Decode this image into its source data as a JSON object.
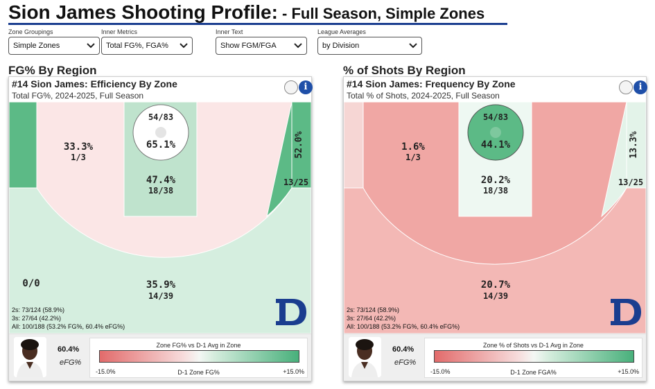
{
  "header": {
    "title_main": "Sion James Shooting Profile:",
    "title_sub": " - Full Season, Simple Zones"
  },
  "controls": [
    {
      "label": "Zone Groupings",
      "value": "Simple Zones"
    },
    {
      "label": "Inner Metrics",
      "value": "Total FG%, FGA%"
    },
    {
      "label": "Inner Text",
      "value": "Show FGM/FGA"
    },
    {
      "label": "League Averages",
      "value": "by Division"
    }
  ],
  "colors": {
    "dark_green": "#5cba86",
    "light_green": "#d5eedf",
    "pale_green": "#e6f3ea",
    "mid_green": "#bfe3cd",
    "pale_red": "#fbe6e6",
    "light_red": "#f0a7a4",
    "mid_red": "#f3b8b5",
    "accent_blue": "#1f4fa8",
    "duke_blue": "#1a3d8f"
  },
  "panels": [
    {
      "section_title": "FG% By Region",
      "title": "#14 Sion James: Efficiency By Zone",
      "subtitle": "Total FG%, 2024-2025, Full Season",
      "stats": [
        "2s: 73/124 (58.9%)",
        "3s: 27/64 (42.2%)",
        "All: 100/188 (53.2% FG%, 60.4% eFG%)"
      ],
      "footer": {
        "value": "60.4%",
        "metric": "eFG%",
        "legend_title": "Zone FG% vs D-1 Avg in Zone",
        "legend_min": "-15.0%",
        "legend_mid": "D-1 Zone FG%",
        "legend_max": "+15.0%"
      }
    },
    {
      "section_title": "% of Shots By Region",
      "title": "#14 Sion James: Frequency By Zone",
      "subtitle": "Total % of Shots, 2024-2025, Full Season",
      "stats": [
        "2s: 73/124 (58.9%)",
        "3s: 27/64 (42.2%)",
        "All: 100/188 (53.2% FG%, 60.4% eFG%)"
      ],
      "footer": {
        "value": "60.4%",
        "metric": "eFG%",
        "legend_title": "Zone % of Shots vs D-1 Avg in Zone",
        "legend_min": "-15.0%",
        "legend_mid": "D-1 Zone FGA%",
        "legend_max": "+15.0%"
      }
    }
  ],
  "chart_data": [
    {
      "type": "heatmap",
      "title": "#14 Sion James: Efficiency By Zone",
      "subtitle": "Total FG%, 2024-2025, Full Season",
      "metric": "Total FG%",
      "zones": [
        {
          "zone": "rim",
          "value": "65.1%",
          "made_attempts": "54/83",
          "color": "#ffffff"
        },
        {
          "zone": "paint",
          "value": "47.4%",
          "made_attempts": "18/38",
          "color": "#bfe3cd"
        },
        {
          "zone": "left corner 3",
          "value": "",
          "made_attempts": "",
          "color": "#5cba86"
        },
        {
          "zone": "left midrange",
          "value": "33.3%",
          "made_attempts": "1/3",
          "color": "#fbe6e6"
        },
        {
          "zone": "right midrange / right corner 3",
          "value": "52.0%",
          "made_attempts": "13/25",
          "color": "#5cba86"
        },
        {
          "zone": "left wing 3",
          "value": "0/0",
          "made_attempts": "",
          "color": "#e6f3ea"
        },
        {
          "zone": "above the break 3",
          "value": "35.9%",
          "made_attempts": "14/39",
          "color": "#d5eedf"
        }
      ],
      "legend": {
        "title": "Zone FG% vs D-1 Avg in Zone",
        "min": "-15.0%",
        "mid": "D-1 Zone FG%",
        "max": "+15.0%"
      }
    },
    {
      "type": "heatmap",
      "title": "#14 Sion James: Frequency By Zone",
      "subtitle": "Total % of Shots, 2024-2025, Full Season",
      "metric": "Total % of Shots",
      "zones": [
        {
          "zone": "rim",
          "value": "44.1%",
          "made_attempts": "54/83",
          "color": "#5cba86"
        },
        {
          "zone": "paint",
          "value": "20.2%",
          "made_attempts": "18/38",
          "color": "#eef8f2"
        },
        {
          "zone": "left corner 3",
          "value": "",
          "made_attempts": "",
          "color": "#f6d6d4"
        },
        {
          "zone": "left midrange",
          "value": "1.6%",
          "made_attempts": "1/3",
          "color": "#f0a7a4"
        },
        {
          "zone": "right midrange / right corner 3",
          "value": "13.3%",
          "made_attempts": "13/25",
          "color": "#e3f3e9"
        },
        {
          "zone": "above the break 3",
          "value": "20.7%",
          "made_attempts": "14/39",
          "color": "#f3b8b5"
        }
      ],
      "legend": {
        "title": "Zone % of Shots vs D-1 Avg in Zone",
        "min": "-15.0%",
        "mid": "D-1 Zone FGA%",
        "max": "+15.0%"
      }
    }
  ]
}
